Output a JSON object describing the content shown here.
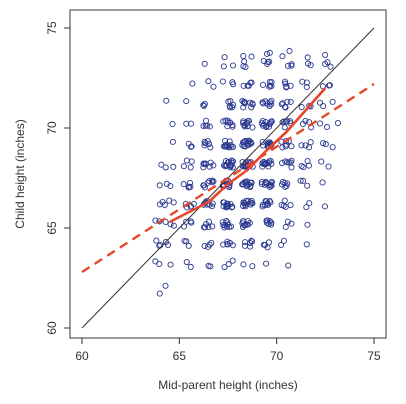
{
  "chart_data": {
    "type": "scatter",
    "title": "",
    "xlabel": "Mid-parent height (inches)",
    "ylabel": "Child height (inches)",
    "xlim": [
      60,
      75
    ],
    "ylim": [
      60,
      75
    ],
    "x_ticks": [
      60,
      65,
      70,
      75
    ],
    "y_ticks": [
      60,
      65,
      70,
      75
    ],
    "x_tick_labels": [
      "60",
      "65",
      "70",
      "75"
    ],
    "y_tick_labels": [
      "60",
      "65",
      "70",
      "75"
    ],
    "grid": false,
    "legend": "none",
    "colors": {
      "points": "#2b3990",
      "identity_line": "#333333",
      "regression_line": "#e8462a",
      "frame": "#333333"
    },
    "series": [
      {
        "kind": "points",
        "x_values": [
          64.0,
          64.5,
          65.5,
          66.5,
          67.5,
          68.5,
          69.5,
          70.5,
          71.5,
          72.5,
          73.0
        ],
        "y_values": [
          61.7,
          62.2,
          63.2,
          64.2,
          65.2,
          66.2,
          67.2,
          68.2,
          69.2,
          70.2,
          71.2,
          72.2,
          73.2,
          73.7
        ],
        "counts": [
          [
            1,
            0,
            0,
            0,
            0,
            0,
            0,
            0,
            0,
            0,
            0
          ],
          [
            0,
            1,
            0,
            0,
            0,
            0,
            0,
            0,
            0,
            0,
            0
          ],
          [
            2,
            1,
            2,
            2,
            3,
            2,
            1,
            1,
            0,
            0,
            0
          ],
          [
            3,
            2,
            3,
            4,
            6,
            6,
            4,
            2,
            1,
            0,
            0
          ],
          [
            2,
            3,
            4,
            6,
            10,
            10,
            7,
            3,
            1,
            0,
            0
          ],
          [
            2,
            3,
            5,
            8,
            14,
            14,
            10,
            5,
            2,
            1,
            0
          ],
          [
            1,
            2,
            5,
            8,
            15,
            16,
            12,
            6,
            3,
            1,
            0
          ],
          [
            1,
            2,
            4,
            8,
            15,
            17,
            13,
            7,
            4,
            2,
            0
          ],
          [
            0,
            1,
            3,
            6,
            12,
            15,
            13,
            7,
            4,
            2,
            1
          ],
          [
            0,
            1,
            2,
            5,
            9,
            12,
            12,
            7,
            4,
            2,
            1
          ],
          [
            0,
            1,
            1,
            3,
            6,
            9,
            9,
            6,
            3,
            2,
            1
          ],
          [
            0,
            0,
            1,
            2,
            3,
            5,
            6,
            5,
            3,
            2,
            1
          ],
          [
            0,
            0,
            0,
            1,
            2,
            3,
            4,
            3,
            2,
            2,
            1
          ],
          [
            0,
            0,
            0,
            0,
            1,
            2,
            2,
            2,
            1,
            1,
            0
          ]
        ]
      },
      {
        "kind": "line",
        "style": "solid",
        "x": [
          60,
          75
        ],
        "y": [
          60,
          75
        ]
      },
      {
        "kind": "line",
        "style": "dashed",
        "x": [
          60,
          75
        ],
        "y": [
          62.8,
          72.2
        ]
      },
      {
        "kind": "line",
        "style": "solid-thick",
        "x": [
          64.5,
          66.5,
          67.5,
          68.5,
          69.5,
          70.5,
          71.5,
          72.5
        ],
        "y": [
          65.3,
          66.3,
          67.2,
          67.9,
          68.9,
          69.8,
          70.9,
          72.0
        ]
      }
    ]
  }
}
